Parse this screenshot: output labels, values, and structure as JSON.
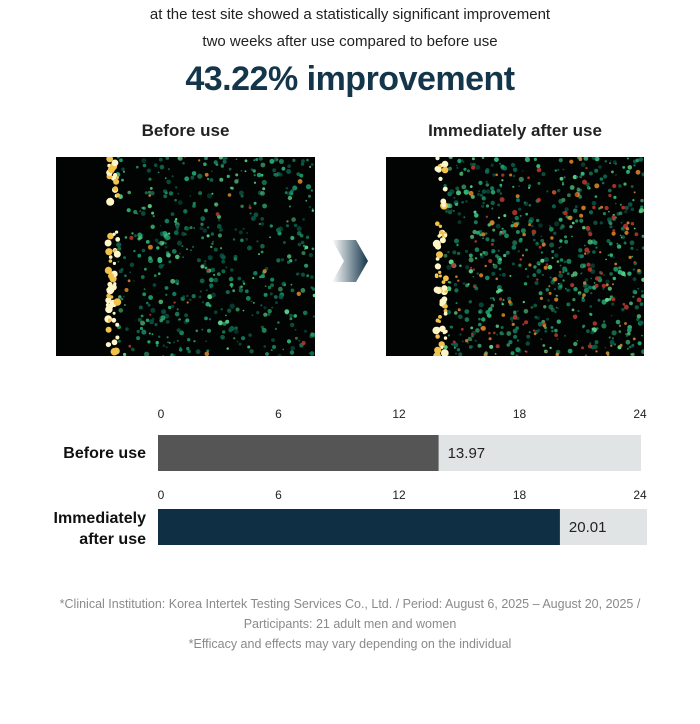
{
  "intro": {
    "line1": "at the test site showed a statistically significant improvement",
    "line2": "two weeks after use compared to before use"
  },
  "headline": "43.22% improvement",
  "images": {
    "before_label": "Before use",
    "after_label": "Immediately after use"
  },
  "colors": {
    "headline": "#14364a",
    "before_bar": "#555555",
    "after_bar": "#0f2f44",
    "track": "#e1e4e4"
  },
  "chart_data": {
    "type": "bar",
    "orientation": "horizontal",
    "categories": [
      "Before use",
      "Immediately after use"
    ],
    "category_lines": [
      [
        "Before use"
      ],
      [
        "Immediately",
        "after use"
      ]
    ],
    "values": [
      13.97,
      20.01
    ],
    "value_labels": [
      "13.97",
      "20.01"
    ],
    "xlim": [
      0,
      24
    ],
    "ticks": [
      0,
      6,
      12,
      18,
      24
    ],
    "title": "",
    "xlabel": "",
    "ylabel": "",
    "grid": false
  },
  "footnotes": {
    "line1": "*Clinical Institution: Korea Intertek Testing Services Co., Ltd. / Period: August 6, 2025 – August 20, 2025 /",
    "line2": "Participants: 21 adult men and women",
    "line3": "*Efficacy and effects may vary depending on the individual"
  }
}
